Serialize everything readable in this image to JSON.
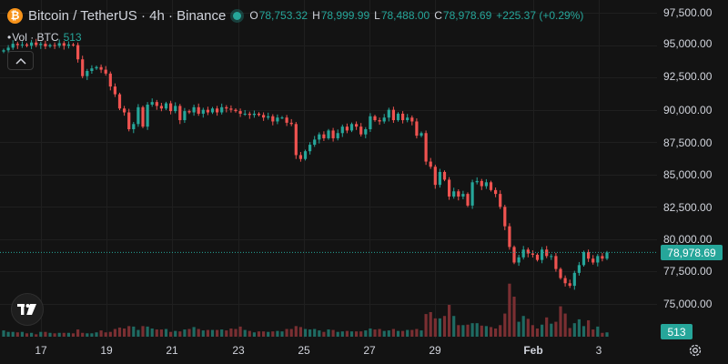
{
  "header": {
    "symbol_title": "Bitcoin / TetherUS · 4h · Binance",
    "coin_glyph": "₿",
    "ohlc": [
      {
        "label": "O",
        "value": "78,753.32"
      },
      {
        "label": "H",
        "value": "78,999.99"
      },
      {
        "label": "L",
        "value": "78,488.00"
      },
      {
        "label": "C",
        "value": "78,978.69"
      }
    ],
    "change": "+225.37 (+0.29%)",
    "volume": {
      "label": "Vol · BTC",
      "value": "513"
    }
  },
  "colors": {
    "up": "#26a69a",
    "down": "#ef5350",
    "up_volume": "#1f6b63",
    "down_volume": "#7a2f32",
    "background": "#131313",
    "grid": "#1f1f1f"
  },
  "price_axis": {
    "ticks": [
      "97,500.00",
      "95,000.00",
      "92,500.00",
      "90,000.00",
      "87,500.00",
      "85,000.00",
      "82,500.00",
      "80,000.00",
      "77,500.00",
      "75,000.00"
    ],
    "current_price": "78,978.69",
    "volume_badge": "513"
  },
  "time_axis": {
    "ticks": [
      "17",
      "19",
      "21",
      "23",
      "25",
      "27",
      "29",
      "Feb",
      "3"
    ]
  },
  "chart_data": {
    "type": "candlestick",
    "symbol": "BTCUSDT",
    "interval": "4h",
    "ylim": [
      73000,
      98200
    ],
    "current_price": 78978.69,
    "closes": [
      94600,
      94800,
      95100,
      95000,
      95050,
      94950,
      95200,
      95000,
      95100,
      94900,
      95000,
      94950,
      95150,
      94950,
      95050,
      95000,
      93900,
      92600,
      93000,
      93200,
      93300,
      93100,
      92800,
      91800,
      91200,
      90100,
      89800,
      88500,
      88900,
      90200,
      88700,
      90400,
      90600,
      90300,
      90100,
      90500,
      89900,
      90300,
      89200,
      89900,
      89800,
      90200,
      89700,
      90000,
      89800,
      90100,
      89800,
      90200,
      90100,
      90000,
      89900,
      89700,
      89700,
      89600,
      89700,
      89600,
      89400,
      89500,
      89100,
      89400,
      89400,
      89000,
      88900,
      86500,
      86200,
      86800,
      87300,
      87700,
      88100,
      87800,
      88400,
      87800,
      88200,
      88700,
      88400,
      88900,
      88700,
      88100,
      88500,
      89500,
      89200,
      89100,
      89400,
      90000,
      89200,
      89700,
      89200,
      89400,
      89100,
      88000,
      88200,
      86000,
      85600,
      84200,
      85200,
      84600,
      83300,
      83700,
      83300,
      83500,
      82600,
      84400,
      84500,
      84100,
      84400,
      83800,
      83500,
      82500,
      81000,
      79400,
      78200,
      78600,
      79200,
      78900,
      78800,
      78400,
      79200,
      78700,
      78700,
      77700,
      77000,
      76600,
      76400,
      77400,
      78000,
      79000,
      78500,
      78200,
      78700,
      78500,
      78979
    ],
    "volumes": [
      13,
      10,
      10,
      9,
      10,
      7,
      8,
      5,
      10,
      10,
      8,
      7,
      8,
      8,
      8,
      7,
      15,
      8,
      7,
      7,
      9,
      13,
      9,
      10,
      16,
      19,
      17,
      22,
      21,
      14,
      22,
      21,
      17,
      15,
      15,
      16,
      10,
      12,
      11,
      15,
      16,
      20,
      16,
      13,
      14,
      14,
      14,
      15,
      13,
      17,
      16,
      21,
      14,
      12,
      9,
      11,
      11,
      10,
      11,
      12,
      11,
      16,
      16,
      22,
      20,
      16,
      15,
      16,
      13,
      10,
      15,
      14,
      10,
      11,
      12,
      11,
      11,
      11,
      13,
      17,
      15,
      16,
      12,
      13,
      16,
      12,
      12,
      14,
      14,
      16,
      13,
      47,
      51,
      38,
      38,
      43,
      66,
      43,
      24,
      24,
      25,
      28,
      28,
      23,
      22,
      20,
      17,
      24,
      48,
      110,
      83,
      31,
      43,
      37,
      24,
      17,
      25,
      40,
      27,
      31,
      63,
      48,
      18,
      28,
      36,
      22,
      34,
      15,
      21,
      8,
      9
    ]
  }
}
